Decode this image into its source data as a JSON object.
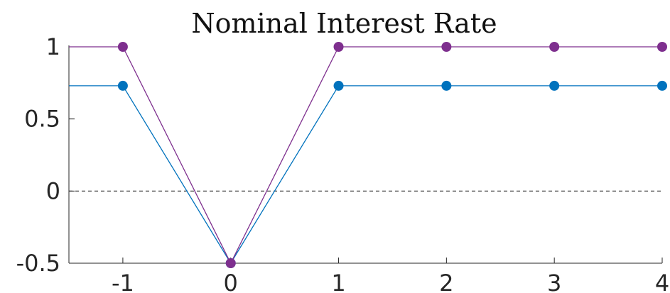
{
  "chart_data": {
    "type": "line",
    "title": "Nominal Interest Rate",
    "xlabel": "",
    "ylabel": "",
    "x": [
      -1,
      0,
      1,
      2,
      3,
      4
    ],
    "xlim": [
      -1.5,
      4
    ],
    "ylim": [
      -0.5,
      1
    ],
    "xticks": [
      -1,
      0,
      1,
      2,
      3,
      4
    ],
    "xtick_labels": [
      "-1",
      "0",
      "1",
      "2",
      "3",
      "4"
    ],
    "yticks": [
      -0.5,
      0,
      0.5,
      1
    ],
    "ytick_labels": [
      "-0.5",
      "0",
      "0.5",
      "1"
    ],
    "reference_line": {
      "y": 0,
      "style": "dashed"
    },
    "series": [
      {
        "color": "#0072BD",
        "pre_value": 0.73,
        "values": [
          0.73,
          -0.5,
          0.73,
          0.73,
          0.73,
          0.73
        ]
      },
      {
        "color": "#7E2F8E",
        "pre_value": 1.0,
        "values": [
          1.0,
          -0.5,
          1.0,
          1.0,
          1.0,
          1.0
        ]
      }
    ],
    "grid": false,
    "legend": "none"
  }
}
